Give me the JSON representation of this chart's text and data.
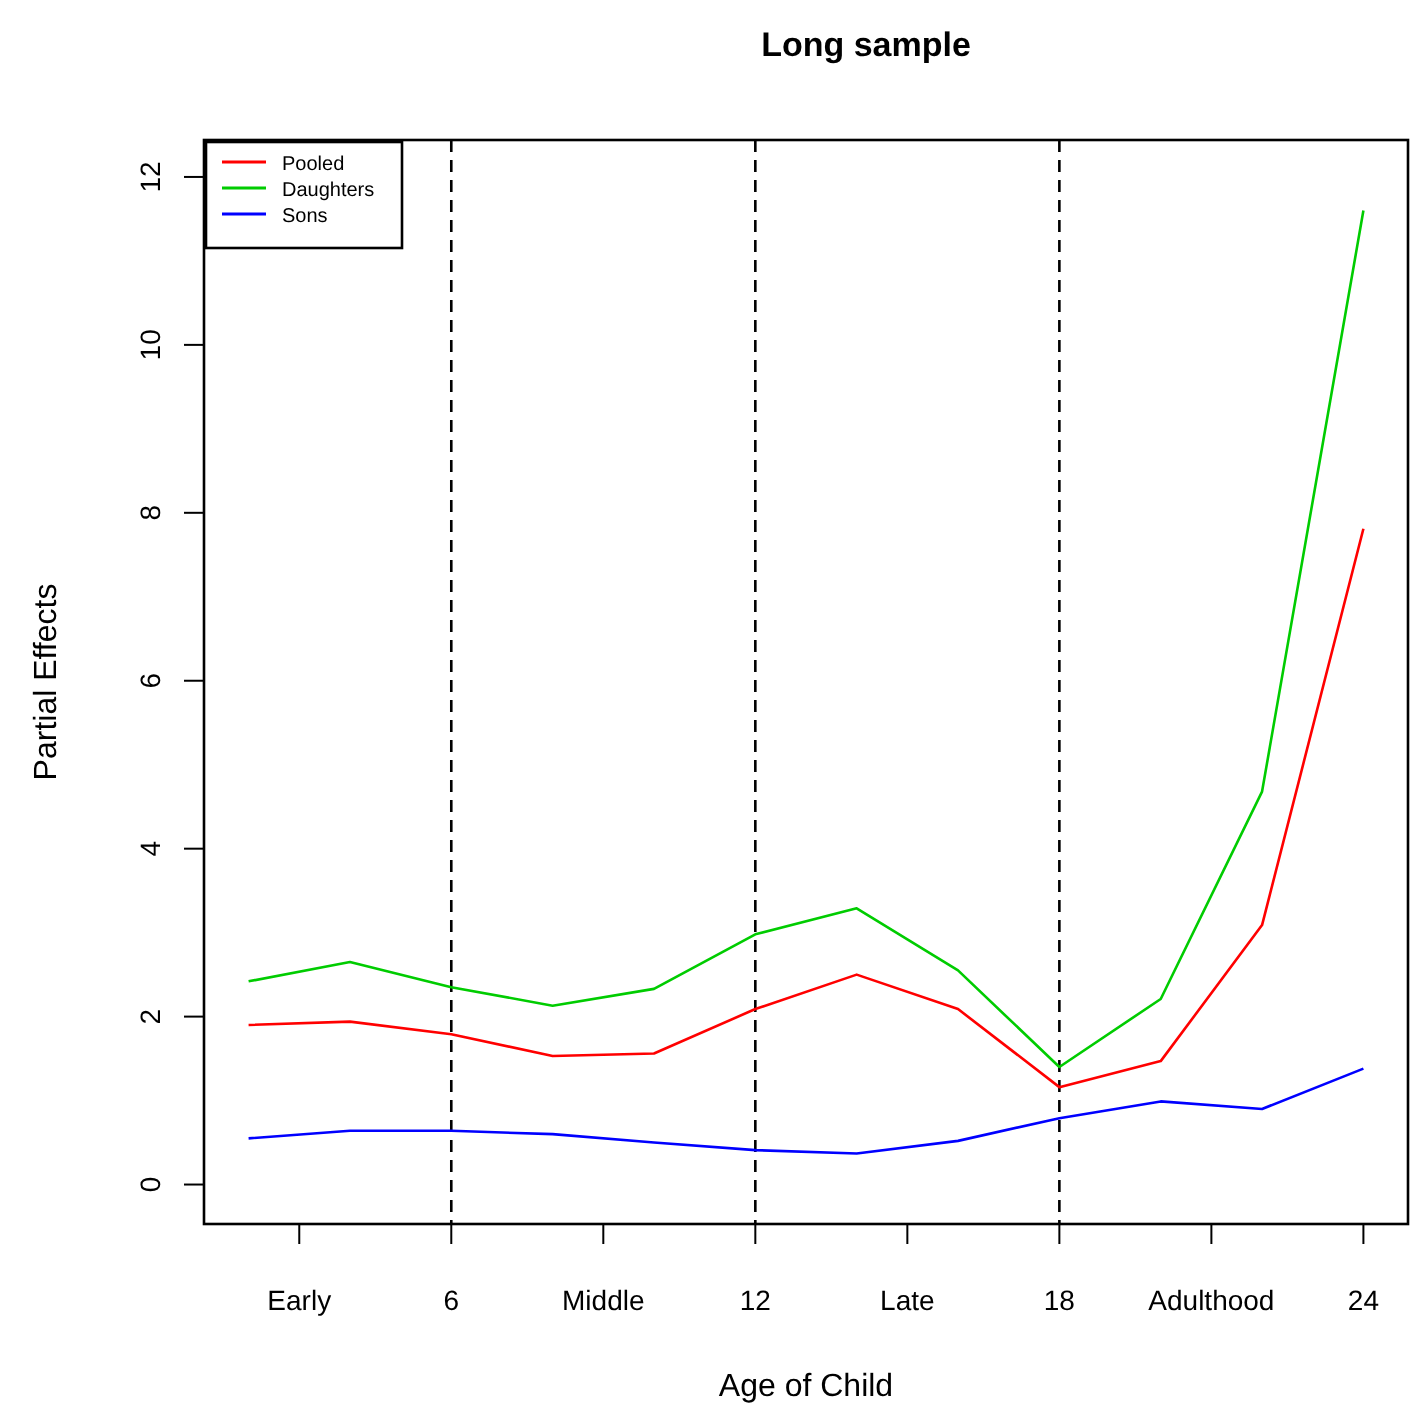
{
  "chart_data": {
    "type": "line",
    "title": "Long sample",
    "xlabel": "Age of Child",
    "ylabel": "Partial Effects",
    "x": [
      2,
      4,
      6,
      8,
      10,
      12,
      14,
      16,
      18,
      20,
      22,
      24
    ],
    "series": [
      {
        "name": "Pooled",
        "color": "#ff0000",
        "values": [
          1.9,
          1.94,
          1.79,
          1.53,
          1.56,
          2.09,
          2.5,
          2.09,
          1.16,
          1.47,
          3.09,
          7.81
        ]
      },
      {
        "name": "Daughters",
        "color": "#00cc00",
        "values": [
          2.42,
          2.65,
          2.35,
          2.13,
          2.33,
          2.98,
          3.29,
          2.55,
          1.4,
          2.21,
          4.68,
          11.6
        ]
      },
      {
        "name": "Sons",
        "color": "#0000ff",
        "values": [
          0.55,
          0.64,
          0.64,
          0.6,
          0.5,
          0.41,
          0.37,
          0.52,
          0.79,
          0.99,
          0.9,
          1.38
        ]
      }
    ],
    "xlim": [
      1.12,
      24.88
    ],
    "ylim": [
      -0.47,
      12.44
    ],
    "xticks": [
      {
        "value": 3,
        "label": "Early"
      },
      6,
      {
        "value": 9,
        "label": "Middle"
      },
      12,
      {
        "value": 15,
        "label": "Late"
      },
      18,
      {
        "value": 21,
        "label": "Adulthood"
      },
      24
    ],
    "yticks": [
      0,
      2,
      4,
      6,
      8,
      10,
      12
    ],
    "ref_lines": [
      {
        "axis": "x",
        "value": 6,
        "color": "#000000",
        "line_style": "dashed"
      },
      {
        "axis": "x",
        "value": 12,
        "color": "#000000",
        "line_style": "dashed"
      },
      {
        "axis": "x",
        "value": 18,
        "color": "#000000",
        "line_style": "dashed"
      }
    ],
    "legend": "top left",
    "grid": false,
    "line_style": "solid",
    "marker": "none"
  }
}
